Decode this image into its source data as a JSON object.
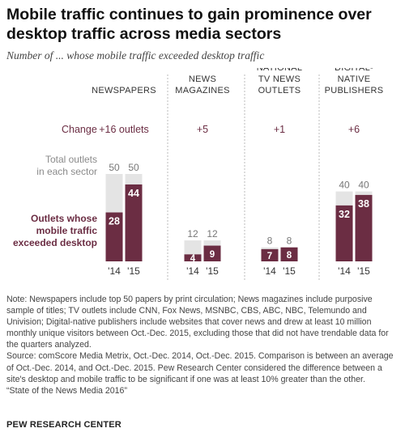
{
  "title": "Mobile traffic continues to gain prominence over desktop traffic across media sectors",
  "subtitle": "Number of ... whose mobile traffic exceeded desktop traffic",
  "labels": {
    "change": "Change",
    "total_line1": "Total outlets",
    "total_line2": "in each sector",
    "outlets_line1": "Outlets whose",
    "outlets_line2": "mobile traffic",
    "outlets_line3": "exceeded desktop"
  },
  "colors": {
    "total_bar": "#e4e4e4",
    "mobile_bar": "#6b2d43",
    "mobile_text": "#6b2d43",
    "divider": "#bbbbbb"
  },
  "chart_data": {
    "type": "bar",
    "categories": [
      "'14",
      "'15"
    ],
    "groups": [
      {
        "name_lines": [
          "NEWSPAPERS"
        ],
        "change": "+16 outlets",
        "total": [
          50,
          50
        ],
        "mobile": [
          28,
          44
        ]
      },
      {
        "name_lines": [
          "NEWS",
          "MAGAZINES"
        ],
        "change": "+5",
        "total": [
          12,
          12
        ],
        "mobile": [
          4,
          9
        ]
      },
      {
        "name_lines": [
          "NATIONAL",
          "TV NEWS",
          "OUTLETS"
        ],
        "change": "+1",
        "total": [
          8,
          8
        ],
        "mobile": [
          7,
          8
        ]
      },
      {
        "name_lines": [
          "DIGITAL-",
          "NATIVE",
          "PUBLISHERS"
        ],
        "change": "+6",
        "total": [
          40,
          40
        ],
        "mobile": [
          32,
          38
        ]
      }
    ],
    "series": [
      {
        "name": "Total outlets in each sector"
      },
      {
        "name": "Outlets whose mobile traffic exceeded desktop"
      }
    ]
  },
  "notes": [
    "Note: Newspapers include top 50 papers by print circulation; News magazines include purposive sample of titles; TV outlets include CNN, Fox News, MSNBC, CBS, ABC, NBC, Telemundo and Univision; Digital-native publishers include websites that cover news and drew at least 10 million monthly unique visitors between Oct.-Dec. 2015, excluding those that did not have trendable data for the quarters analyzed.",
    "Source: comScore Media Metrix, Oct.-Dec. 2014, Oct.-Dec. 2015. Comparison is between an average of Oct.-Dec. 2014, and Oct.-Dec. 2015. Pew Research Center considered the difference between a site's desktop and mobile traffic to be significant if one was at least 10% greater than the other.",
    "“State of the News Media 2016”"
  ],
  "source_org": "PEW RESEARCH CENTER"
}
